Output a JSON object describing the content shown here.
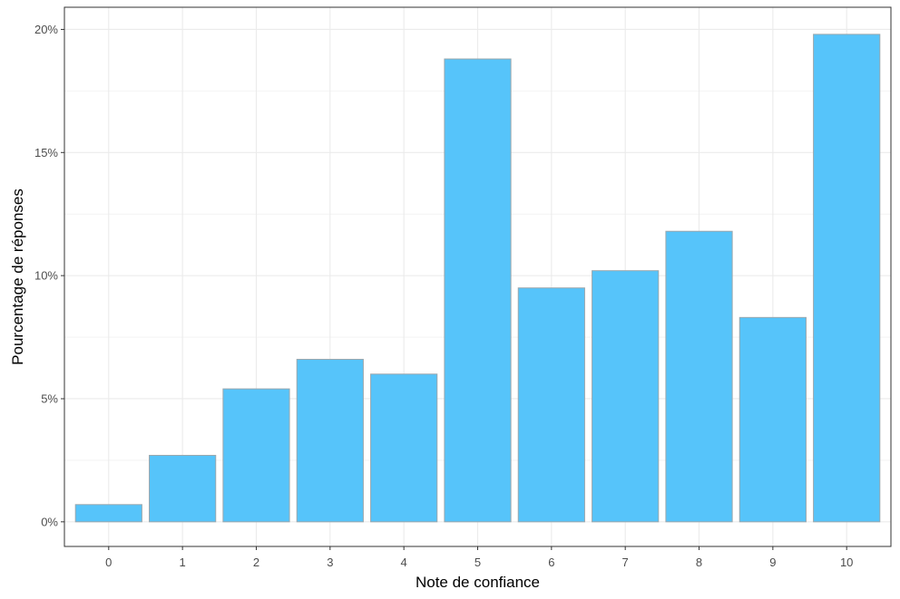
{
  "chart_data": {
    "type": "bar",
    "title": "",
    "xlabel": "Note de confiance",
    "ylabel": "Pourcentage de réponses",
    "categories": [
      "0",
      "1",
      "2",
      "3",
      "4",
      "5",
      "6",
      "7",
      "8",
      "9",
      "10"
    ],
    "values": [
      0.7,
      2.7,
      5.4,
      6.6,
      6.0,
      18.8,
      9.5,
      10.2,
      11.8,
      8.3,
      19.8
    ],
    "y_ticks": [
      0,
      5,
      10,
      15,
      20
    ],
    "y_tick_labels": [
      "0%",
      "5%",
      "10%",
      "15%",
      "20%"
    ],
    "ylim": [
      -1,
      20.9
    ],
    "grid": true,
    "legend": "none",
    "colors": {
      "bar_fill": "#56c4fa",
      "bar_stroke": "#9aa7ad",
      "grid": "#ebebeb",
      "panel_border": "#333333",
      "background": "#ffffff"
    }
  }
}
